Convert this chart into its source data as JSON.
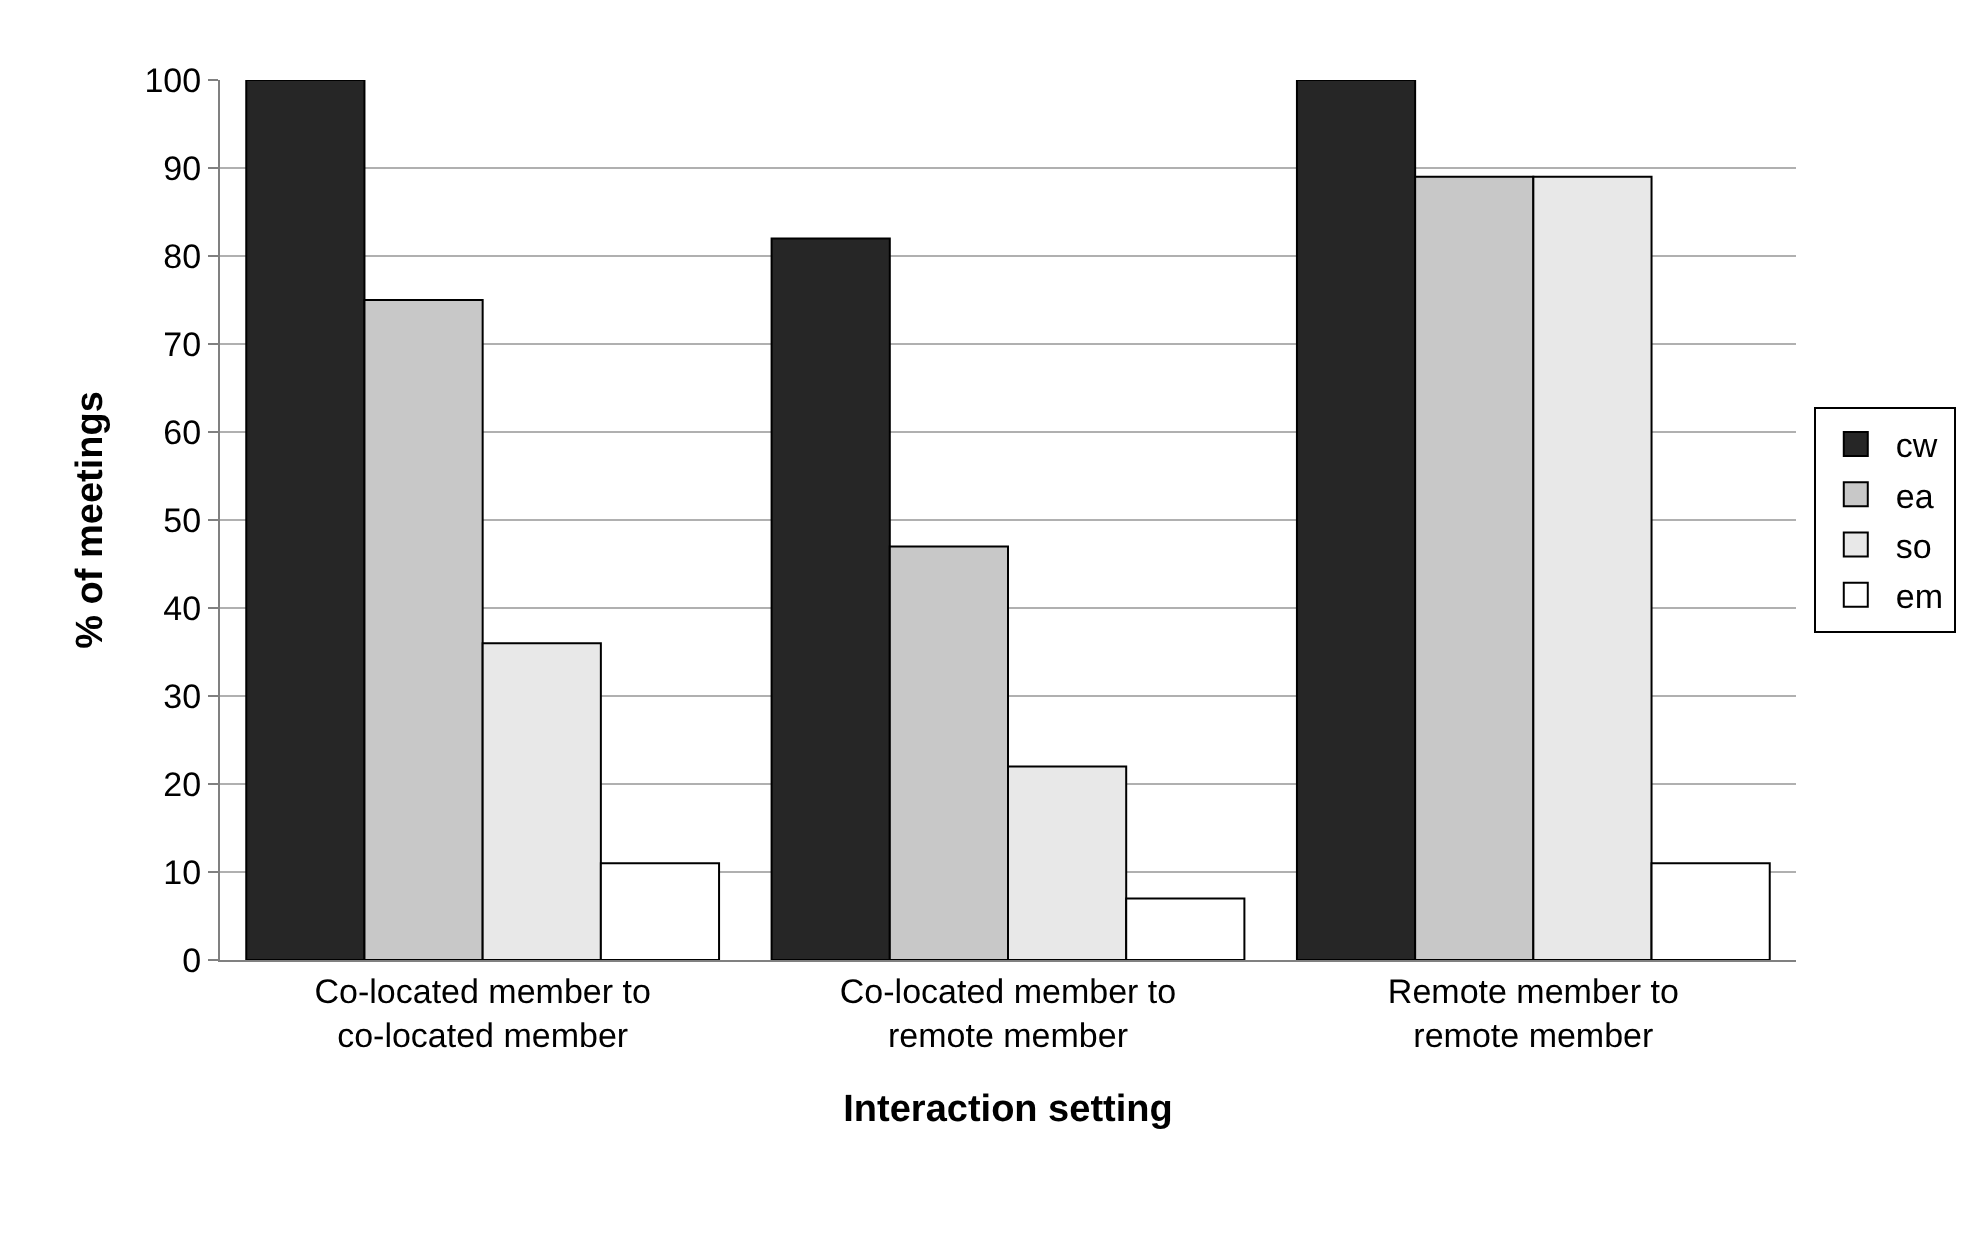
{
  "chart_data": {
    "type": "bar",
    "xlabel": "Interaction setting",
    "ylabel": "% of meetings",
    "categories": [
      "Co-located member to co-located member",
      "Co-located member to remote member",
      "Remote member to remote member"
    ],
    "series": [
      {
        "name": "cw",
        "color": "#262626",
        "values": [
          100,
          82,
          100
        ]
      },
      {
        "name": "ea",
        "color": "#c8c8c8",
        "values": [
          75,
          47,
          89
        ]
      },
      {
        "name": "so",
        "color": "#e8e8e8",
        "values": [
          36,
          22,
          89
        ]
      },
      {
        "name": "em",
        "color": "#ffffff",
        "values": [
          11,
          7,
          11
        ]
      }
    ],
    "ylim": [
      0,
      100
    ],
    "yticks": [
      0,
      10,
      20,
      30,
      40,
      50,
      60,
      70,
      80,
      90,
      100
    ],
    "grid": "y",
    "legend": "right"
  }
}
